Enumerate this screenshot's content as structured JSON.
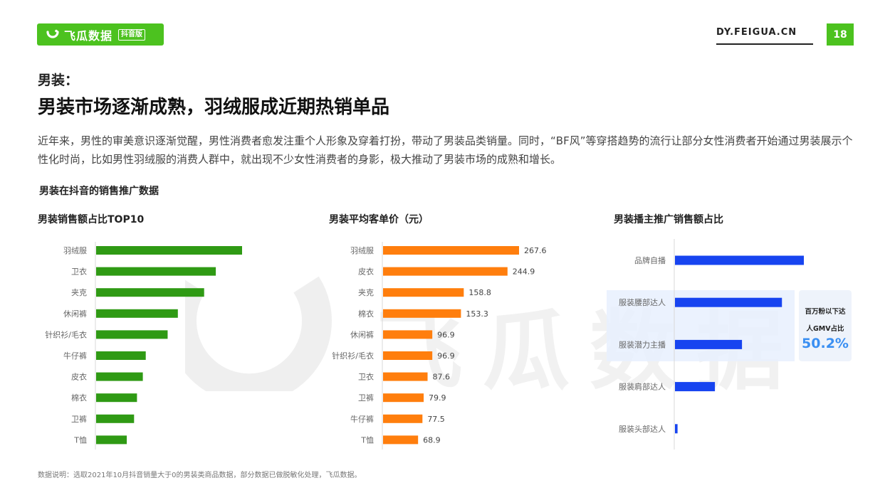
{
  "header": {
    "logo_text": "飞瓜数据",
    "logo_badge": "抖音版",
    "site": "DY.FEIGUA.CN",
    "page_number": "18"
  },
  "colors": {
    "brand_green": "#4cc21f",
    "bar_green": "#2f9a14",
    "bar_orange": "#ff7e0d",
    "bar_blue": "#1744f0",
    "highlight": "#3a8ff2"
  },
  "section_label": "男装：",
  "headline": "男装市场逐渐成熟，羽绒服成近期热销单品",
  "intro": "近年来，男性的审美意识逐渐觉醒，男性消费者愈发注重个人形象及穿着打扮，带动了男装品类销量。同时，“BF风”等穿搭趋势的流行让部分女性消费者开始通过男装展示个性化时尚，比如男性羽绒服的消费人群中，就出现不少女性消费者的身影，极大推动了男装市场的成熟和增长。",
  "subsection_title": "男装在抖音的销售推广数据",
  "watermark": "飞瓜数据",
  "chart_data": [
    {
      "type": "bar",
      "orientation": "horizontal",
      "title": "男装销售额占比TOP10",
      "categories": [
        "羽绒服",
        "卫衣",
        "夹克",
        "休闲裤",
        "针织衫/毛衣",
        "牛仔裤",
        "皮衣",
        "棉衣",
        "卫裤",
        "T恤"
      ],
      "values": [
        100,
        82,
        74,
        56,
        49,
        34,
        32,
        28,
        26,
        21
      ],
      "value_labels_shown": false
    },
    {
      "type": "bar",
      "orientation": "horizontal",
      "title": "男装平均客单价（元）",
      "categories": [
        "羽绒服",
        "皮衣",
        "夹克",
        "棉衣",
        "休闲裤",
        "针织衫/毛衣",
        "卫衣",
        "卫裤",
        "牛仔裤",
        "T恤"
      ],
      "values": [
        267.6,
        244.9,
        158.8,
        153.3,
        96.9,
        96.9,
        87.6,
        79.9,
        77.5,
        68.9
      ],
      "value_labels": [
        "267.6",
        "244.9",
        "158.8",
        "153.3",
        "96.9",
        "96.9",
        "87.6",
        "79.9",
        "77.5",
        "68.9"
      ]
    },
    {
      "type": "bar",
      "orientation": "horizontal",
      "title": "男装播主推广销售额占比",
      "categories": [
        "品牌自播",
        "服装腰部达人",
        "服装潜力主播",
        "服装肩部达人",
        "服装头部达人"
      ],
      "values": [
        100,
        83,
        52,
        31,
        2
      ],
      "value_labels_shown": false,
      "annotation": {
        "line1": "百万粉以下达",
        "line2": "人GMV占比",
        "value": "50.2%"
      }
    }
  ],
  "footnote": "数据说明：选取2021年10月抖音销量大于0的男装类商品数据，部分数据已做脱敏化处理，飞瓜数据。"
}
